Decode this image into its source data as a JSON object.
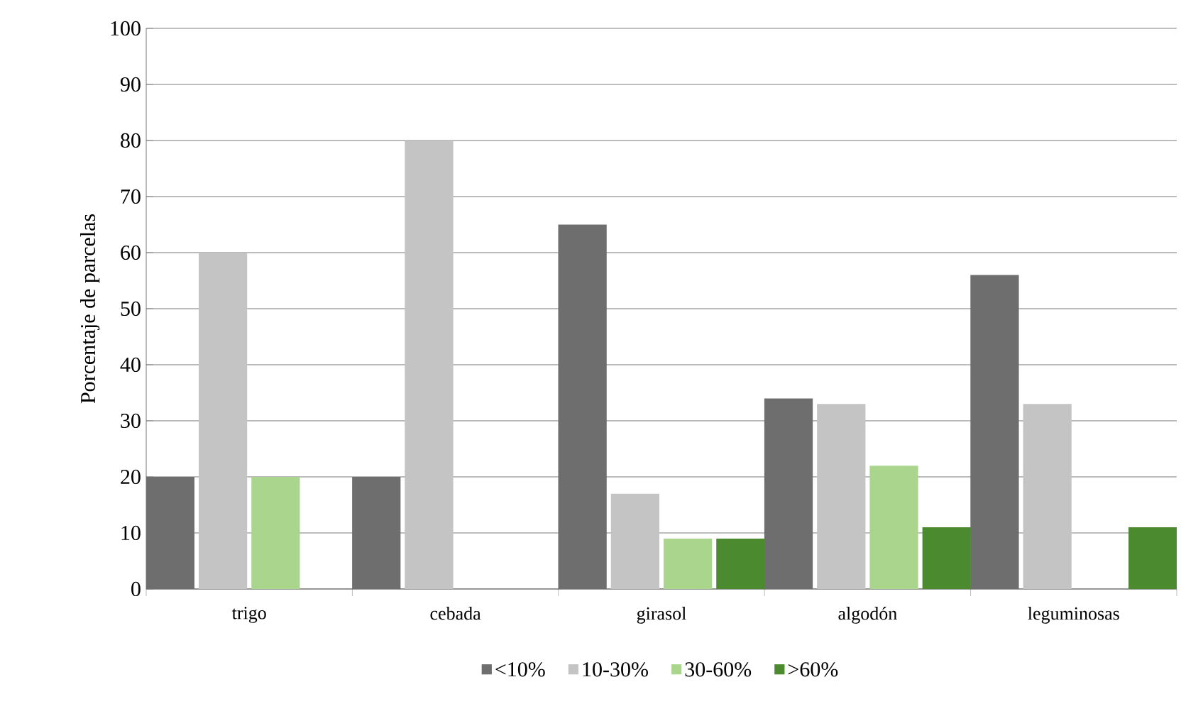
{
  "chart_data": {
    "type": "bar",
    "ylabel": "Porcentaje de parcelas",
    "categories": [
      "trigo",
      "cebada",
      "girasol",
      "algodón",
      "leguminosas"
    ],
    "series": [
      {
        "name": "<10%",
        "color": "#6e6e6e",
        "values": [
          20,
          20,
          65,
          34,
          56
        ]
      },
      {
        "name": "10-30%",
        "color": "#c4c4c4",
        "values": [
          60,
          80,
          17,
          33,
          33
        ]
      },
      {
        "name": "30-60%",
        "color": "#a9d68c",
        "values": [
          20,
          null,
          9,
          22,
          null
        ]
      },
      {
        "name": ">60%",
        "color": "#4b8a2e",
        "values": [
          null,
          null,
          9,
          11,
          11
        ]
      }
    ],
    "ylim": [
      0,
      100
    ],
    "yticks": [
      0,
      10,
      20,
      30,
      40,
      50,
      60,
      70,
      80,
      90,
      100
    ],
    "grid": "y",
    "legend": "bottom"
  }
}
